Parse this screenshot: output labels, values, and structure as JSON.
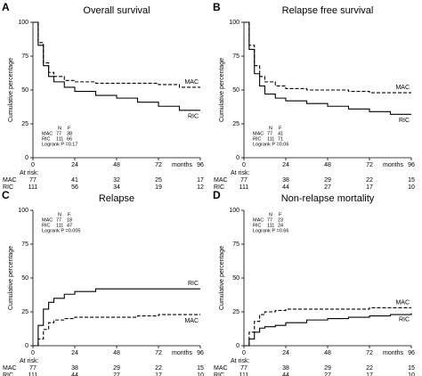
{
  "chart_data": [
    {
      "type": "step",
      "panel": "A",
      "title": "Overall survival",
      "ylabel": "Cumulative percentage",
      "xlabel": "months",
      "xlim": [
        0,
        96
      ],
      "ylim": [
        0,
        100
      ],
      "xticks": [
        0,
        24,
        48,
        72,
        96
      ],
      "yticks": [
        0,
        25,
        50,
        75,
        100
      ],
      "legend": "lower left",
      "info_header": [
        "N",
        "F"
      ],
      "logrank": "Logrank P =0.17",
      "at_risk_label": "At risk:",
      "series": [
        {
          "name": "MAC",
          "color": "#000000",
          "dashed": true,
          "n": 77,
          "f": 38,
          "x": [
            0,
            3,
            6,
            9,
            12,
            18,
            24,
            36,
            48,
            60,
            72,
            84,
            96
          ],
          "values": [
            100,
            85,
            70,
            63,
            60,
            57,
            56,
            55,
            55,
            55,
            54,
            52,
            52
          ],
          "at_risk": [
            77,
            41,
            32,
            25,
            17
          ]
        },
        {
          "name": "RIC",
          "color": "#000000",
          "dashed": false,
          "n": 111,
          "f": 66,
          "x": [
            0,
            3,
            6,
            9,
            12,
            18,
            24,
            36,
            48,
            60,
            72,
            84,
            96
          ],
          "values": [
            100,
            83,
            68,
            60,
            56,
            52,
            49,
            46,
            44,
            41,
            38,
            35,
            35
          ],
          "at_risk": [
            111,
            56,
            34,
            19,
            12
          ]
        }
      ]
    },
    {
      "type": "step",
      "panel": "B",
      "title": "Relapse free survival",
      "ylabel": "Cumulative percentage",
      "xlabel": "months",
      "xlim": [
        0,
        96
      ],
      "ylim": [
        0,
        100
      ],
      "xticks": [
        0,
        24,
        48,
        72,
        96
      ],
      "yticks": [
        0,
        25,
        50,
        75,
        100
      ],
      "legend": "lower left",
      "info_header": [
        "N",
        "F"
      ],
      "logrank": "Logrank P =0.06",
      "at_risk_label": "At risk:",
      "series": [
        {
          "name": "MAC",
          "color": "#000000",
          "dashed": true,
          "n": 77,
          "f": 41,
          "x": [
            0,
            3,
            6,
            9,
            12,
            18,
            24,
            36,
            48,
            60,
            72,
            84,
            96
          ],
          "values": [
            100,
            83,
            68,
            60,
            56,
            53,
            51,
            50,
            50,
            49,
            48,
            48,
            48
          ],
          "at_risk": [
            77,
            38,
            29,
            22,
            15
          ]
        },
        {
          "name": "RIC",
          "color": "#000000",
          "dashed": false,
          "n": 111,
          "f": 71,
          "x": [
            0,
            3,
            6,
            9,
            12,
            18,
            24,
            36,
            48,
            60,
            72,
            84,
            96
          ],
          "values": [
            100,
            80,
            62,
            53,
            47,
            44,
            42,
            40,
            38,
            36,
            34,
            32,
            32
          ],
          "at_risk": [
            111,
            44,
            27,
            17,
            10
          ]
        }
      ]
    },
    {
      "type": "step",
      "panel": "C",
      "title": "Relapse",
      "ylabel": "Cumulative percentage",
      "xlabel": "months",
      "xlim": [
        0,
        96
      ],
      "ylim": [
        0,
        100
      ],
      "xticks": [
        0,
        24,
        48,
        72,
        96
      ],
      "yticks": [
        0,
        25,
        50,
        75,
        100
      ],
      "legend": "upper left",
      "info_header": [
        "N",
        "F"
      ],
      "logrank": "Logrank P =0.005",
      "at_risk_label": "At risk:",
      "series": [
        {
          "name": "MAC",
          "color": "#000000",
          "dashed": true,
          "n": 77,
          "f": 18,
          "x": [
            0,
            3,
            6,
            9,
            12,
            18,
            24,
            36,
            48,
            60,
            72,
            84,
            96
          ],
          "values": [
            0,
            5,
            12,
            17,
            19,
            20,
            21,
            21,
            21,
            22,
            23,
            23,
            23
          ],
          "at_risk": [
            77,
            38,
            29,
            22,
            15
          ]
        },
        {
          "name": "RIC",
          "color": "#000000",
          "dashed": false,
          "n": 111,
          "f": 47,
          "x": [
            0,
            3,
            6,
            9,
            12,
            18,
            24,
            36,
            48,
            60,
            72,
            84,
            96
          ],
          "values": [
            0,
            15,
            27,
            32,
            35,
            38,
            40,
            42,
            42,
            42,
            42,
            42,
            42
          ],
          "at_risk": [
            111,
            44,
            27,
            17,
            10
          ]
        }
      ]
    },
    {
      "type": "step",
      "panel": "D",
      "title": "Non-relapse mortality",
      "ylabel": "Cumulative percentage",
      "xlabel": "months",
      "xlim": [
        0,
        96
      ],
      "ylim": [
        0,
        100
      ],
      "xticks": [
        0,
        24,
        48,
        72,
        96
      ],
      "yticks": [
        0,
        25,
        50,
        75,
        100
      ],
      "legend": "upper left",
      "info_header": [
        "N",
        "F"
      ],
      "logrank": "Logrank P =0.66",
      "at_risk_label": "At risk:",
      "series": [
        {
          "name": "MAC",
          "color": "#000000",
          "dashed": true,
          "n": 77,
          "f": 23,
          "x": [
            0,
            3,
            6,
            9,
            12,
            18,
            24,
            36,
            48,
            60,
            72,
            84,
            96
          ],
          "values": [
            0,
            10,
            18,
            23,
            25,
            26,
            27,
            27,
            27,
            27,
            28,
            28,
            28
          ],
          "at_risk": [
            77,
            38,
            29,
            22,
            15
          ]
        },
        {
          "name": "RIC",
          "color": "#000000",
          "dashed": false,
          "n": 111,
          "f": 24,
          "x": [
            0,
            3,
            6,
            9,
            12,
            18,
            24,
            36,
            48,
            60,
            72,
            84,
            96
          ],
          "values": [
            0,
            5,
            10,
            13,
            14,
            15,
            17,
            19,
            20,
            21,
            22,
            23,
            24
          ],
          "at_risk": [
            111,
            44,
            27,
            17,
            10
          ]
        }
      ]
    }
  ]
}
